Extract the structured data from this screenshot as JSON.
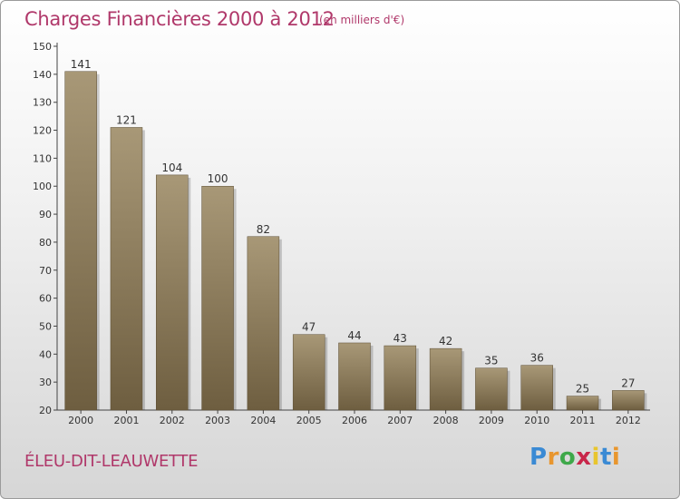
{
  "title": "Charges Financières 2000 à 2012",
  "subtitle": "(en milliers d'€)",
  "commune": "ÉLEU-DIT-LEAUWETTE",
  "logo": {
    "letters": [
      "P",
      "r",
      "o",
      "x",
      "i",
      "t",
      "i"
    ],
    "colors": [
      "#3a8ad4",
      "#e8962e",
      "#3ea84a",
      "#c8264a",
      "#e8c52e",
      "#3a8ad4",
      "#e8962e"
    ]
  },
  "colors": {
    "accent": "#b0386a",
    "bar_top": "#a89877",
    "bar_bottom": "#6e5e40"
  },
  "chart_data": {
    "type": "bar",
    "categories": [
      "2000",
      "2001",
      "2002",
      "2003",
      "2004",
      "2005",
      "2006",
      "2007",
      "2008",
      "2009",
      "2010",
      "2011",
      "2012"
    ],
    "values": [
      141,
      121,
      104,
      100,
      82,
      47,
      44,
      43,
      42,
      35,
      36,
      25,
      27
    ],
    "data_labels": [
      "141",
      "121",
      "104",
      "100",
      "82",
      "47",
      "44",
      "43",
      "42",
      "35",
      "36",
      "25",
      "27"
    ],
    "title": "Charges Financières 2000 à 2012",
    "xlabel": "",
    "ylabel": "",
    "ylim": [
      20,
      150
    ],
    "yticks": [
      20,
      30,
      40,
      50,
      60,
      70,
      80,
      90,
      100,
      110,
      120,
      130,
      140,
      150
    ],
    "grid": false,
    "legend": "none"
  }
}
